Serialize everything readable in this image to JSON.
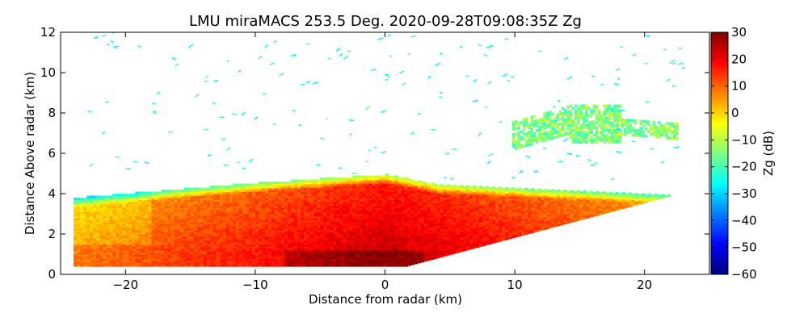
{
  "chart_data": {
    "type": "heatmap",
    "title": "LMU miraMACS 253.5 Deg. 2020-09-28T09:08:35Z  Zg",
    "xlabel": "Distance from radar (km)",
    "ylabel": "Distance Above radar  (km)",
    "xlim": [
      -25,
      25
    ],
    "ylim": [
      0,
      12
    ],
    "x_ticks": [
      "−20",
      "−10",
      "0",
      "10",
      "20"
    ],
    "x_tick_values": [
      -20,
      -10,
      0,
      10,
      20
    ],
    "y_ticks": [
      "0",
      "2",
      "4",
      "6",
      "8",
      "10",
      "12"
    ],
    "y_tick_values": [
      0,
      2,
      4,
      6,
      8,
      10,
      12
    ],
    "colorbar": {
      "label": "Zg (dB)",
      "range": [
        -60,
        30
      ],
      "ticks": [
        "30",
        "20",
        "10",
        "0",
        "−10",
        "−20",
        "−30",
        "−40",
        "−50",
        "−60"
      ],
      "tick_values": [
        30,
        20,
        10,
        0,
        -10,
        -20,
        -30,
        -40,
        -50,
        -60
      ],
      "colormap": [
        "#00007f",
        "#0000ff",
        "#007fff",
        "#00ffff",
        "#7fff7f",
        "#ffff00",
        "#ff7f00",
        "#ff0000",
        "#7f0000"
      ]
    },
    "grid": false,
    "regions": [
      {
        "name": "main cloud layer",
        "x_range": [
          -24,
          22.5
        ],
        "top_km": 4.9,
        "typical_dB": 10
      },
      {
        "name": "upper cloud patch",
        "x_range": [
          9.8,
          22.5
        ],
        "y_range": [
          6,
          8.5
        ],
        "typical_dB": -15
      }
    ]
  }
}
